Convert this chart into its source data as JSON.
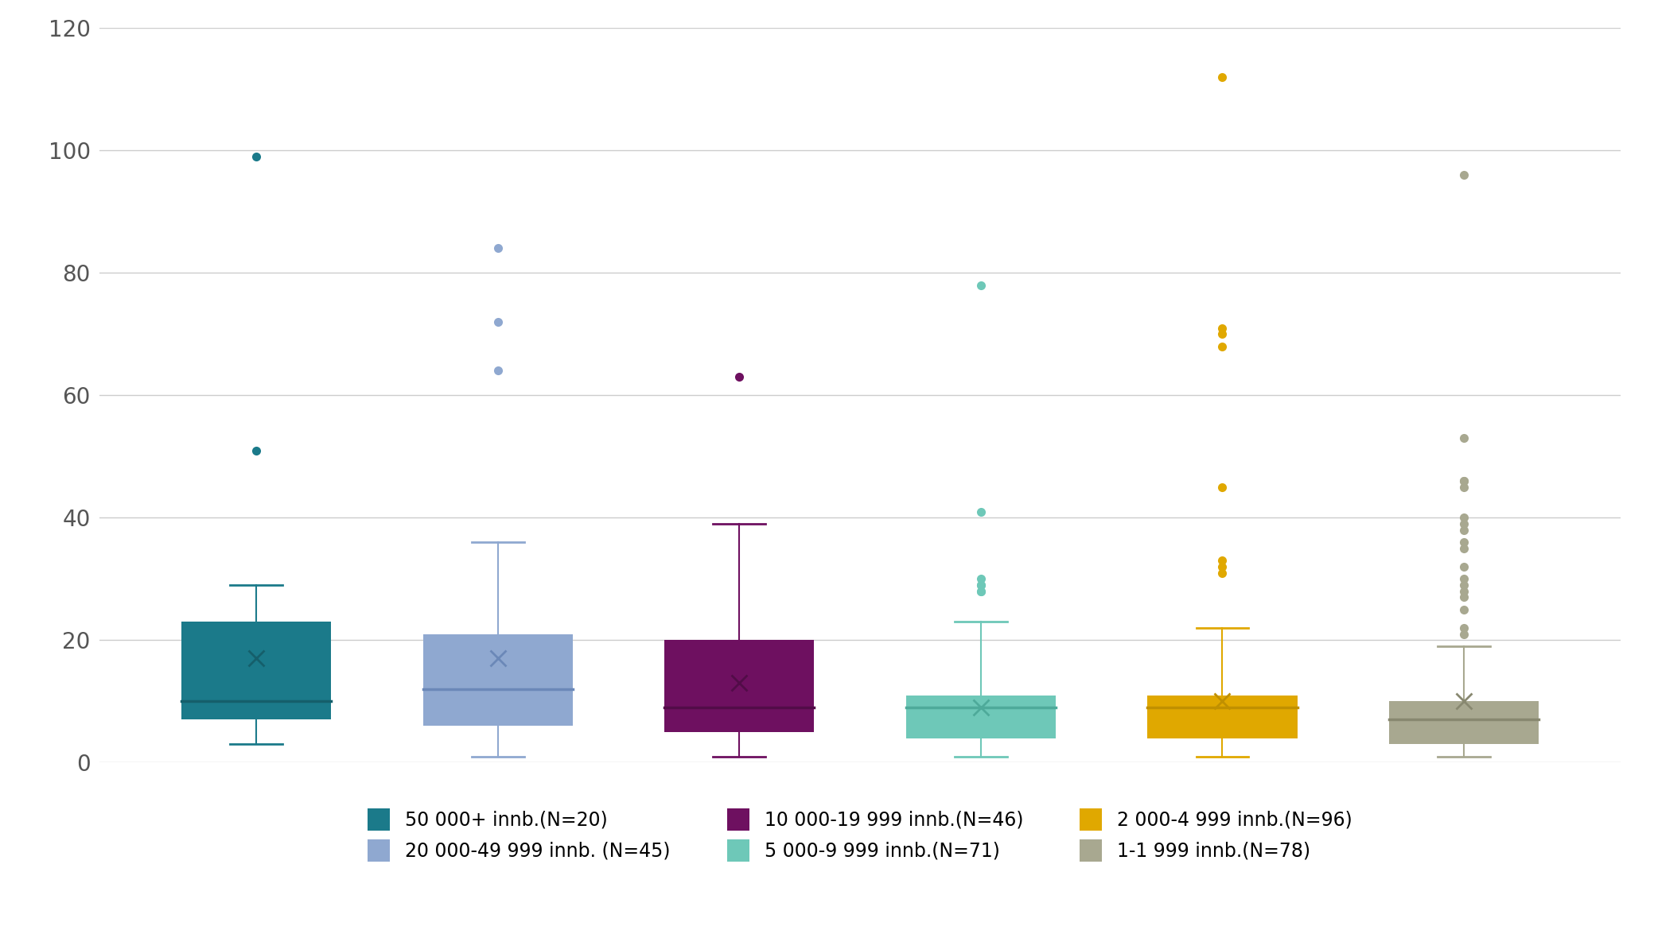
{
  "title": "",
  "ylim": [
    0,
    120
  ],
  "yticks": [
    0,
    20,
    40,
    60,
    80,
    100,
    120
  ],
  "background_color": "#ffffff",
  "plot_bg_color": "#ffffff",
  "grid_color": "#cccccc",
  "groups": [
    {
      "label": "50 000+ innb.(N=20)",
      "color": "#1b7a8a",
      "median_color": "#155f6b",
      "mean_color": "#888888",
      "whisker_lo": 3,
      "q1": 7,
      "median": 10,
      "q3": 23,
      "whisker_hi": 29,
      "mean": 17,
      "outliers": [
        51,
        99
      ]
    },
    {
      "label": "20 000-49 999 innb. (N=45)",
      "color": "#8fa8d0",
      "median_color": "#6b88b8",
      "mean_color": "#888888",
      "whisker_lo": 1,
      "q1": 6,
      "median": 12,
      "q3": 21,
      "whisker_hi": 36,
      "mean": 17,
      "outliers": [
        64,
        72,
        84
      ]
    },
    {
      "label": "10 000-19 999 innb.(N=46)",
      "color": "#6e1060",
      "median_color": "#520c48",
      "mean_color": "#888888",
      "whisker_lo": 1,
      "q1": 5,
      "median": 9,
      "q3": 20,
      "whisker_hi": 39,
      "mean": 13,
      "outliers": [
        63
      ]
    },
    {
      "label": "5 000-9 999 innb.(N=71)",
      "color": "#6ec8b8",
      "median_color": "#4eaa9a",
      "mean_color": "#888888",
      "whisker_lo": 1,
      "q1": 4,
      "median": 9,
      "q3": 11,
      "whisker_hi": 23,
      "mean": 9,
      "outliers": [
        28,
        28,
        29,
        29,
        30,
        41,
        78
      ]
    },
    {
      "label": "2 000-4 999 innb.(N=96)",
      "color": "#e0a800",
      "median_color": "#c09000",
      "mean_color": "#888888",
      "whisker_lo": 1,
      "q1": 4,
      "median": 9,
      "q3": 11,
      "whisker_hi": 22,
      "mean": 10,
      "outliers": [
        31,
        32,
        33,
        45,
        68,
        70,
        71,
        112
      ]
    },
    {
      "label": "1-1 999 innb.(N=78)",
      "color": "#a8a890",
      "median_color": "#888870",
      "mean_color": "#888888",
      "whisker_lo": 1,
      "q1": 3,
      "median": 7,
      "q3": 10,
      "whisker_hi": 19,
      "mean": 10,
      "outliers": [
        21,
        22,
        25,
        27,
        28,
        29,
        30,
        32,
        35,
        36,
        38,
        39,
        40,
        45,
        46,
        46,
        53,
        96
      ]
    }
  ]
}
